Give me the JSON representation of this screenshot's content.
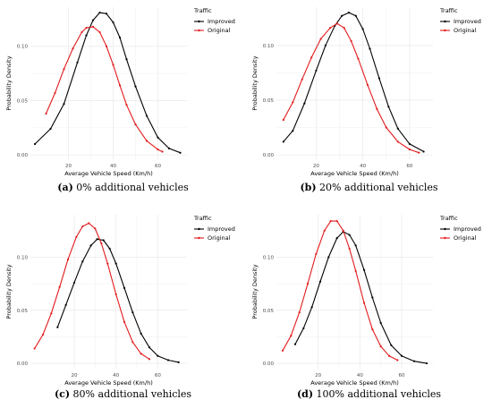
{
  "legend_title": "Traffic",
  "series_names": [
    "Improved",
    "Original"
  ],
  "colors": {
    "Improved": "#000000",
    "Original": "#e31a1c",
    "grid": "#ebebeb",
    "axis_text": "#4d4d4d"
  },
  "xlabel": "Average Vehicle Speed (Km/h)",
  "ylabel": "Probability Density",
  "grid": true,
  "legend_position": "top-right",
  "captions": [
    {
      "letter": "(a)",
      "text": " 0% additional vehicles"
    },
    {
      "letter": "(b)",
      "text": " 20% additional vehicles"
    },
    {
      "letter": "(c)",
      "text": " 80% additional vehicles"
    },
    {
      "letter": "(d)",
      "text": " 100% additional vehicles"
    }
  ],
  "chart_data": [
    {
      "type": "line",
      "xlabel": "Average Vehicle Speed (Km/h)",
      "ylabel": "Probability Density",
      "xlim": [
        3,
        73
      ],
      "ylim": [
        -0.004,
        0.136
      ],
      "xticks": [
        20,
        40,
        60
      ],
      "yticks": [
        0.0,
        0.05,
        0.1
      ],
      "ytick_labels": [
        "0.00",
        "0.05",
        "0.10"
      ],
      "series": [
        {
          "name": "Improved",
          "x": [
            5,
            12,
            18,
            24,
            28,
            31,
            34,
            37,
            40,
            43,
            46,
            50,
            55,
            60,
            65,
            70
          ],
          "y": [
            0.01,
            0.024,
            0.047,
            0.085,
            0.11,
            0.124,
            0.131,
            0.13,
            0.122,
            0.108,
            0.088,
            0.063,
            0.036,
            0.016,
            0.006,
            0.002
          ]
        },
        {
          "name": "Original",
          "x": [
            10,
            14,
            18,
            22,
            26,
            28,
            31,
            34,
            37,
            40,
            43,
            46,
            50,
            55,
            60,
            62
          ],
          "y": [
            0.038,
            0.057,
            0.079,
            0.098,
            0.113,
            0.117,
            0.118,
            0.113,
            0.1,
            0.083,
            0.064,
            0.046,
            0.028,
            0.013,
            0.005,
            0.003
          ]
        }
      ]
    },
    {
      "type": "line",
      "xlabel": "Average Vehicle Speed (Km/h)",
      "ylabel": "Probability Density",
      "xlim": [
        3,
        70
      ],
      "ylim": [
        -0.004,
        0.135
      ],
      "xticks": [
        20,
        40,
        60
      ],
      "yticks": [
        0.0,
        0.05,
        0.1
      ],
      "ytick_labels": [
        "0.00",
        "0.05",
        "0.10"
      ],
      "series": [
        {
          "name": "Improved",
          "x": [
            6,
            10,
            15,
            20,
            24,
            28,
            31,
            34,
            37,
            40,
            43,
            47,
            51,
            55,
            60,
            66
          ],
          "y": [
            0.012,
            0.022,
            0.047,
            0.077,
            0.1,
            0.118,
            0.127,
            0.13,
            0.127,
            0.115,
            0.097,
            0.07,
            0.044,
            0.024,
            0.01,
            0.003
          ]
        },
        {
          "name": "Original",
          "x": [
            6,
            10,
            14,
            18,
            22,
            26,
            29,
            32,
            35,
            38,
            42,
            46,
            50,
            55,
            60,
            64
          ],
          "y": [
            0.032,
            0.048,
            0.069,
            0.089,
            0.106,
            0.116,
            0.12,
            0.116,
            0.104,
            0.088,
            0.064,
            0.042,
            0.025,
            0.012,
            0.005,
            0.002
          ]
        }
      ]
    },
    {
      "type": "line",
      "xlabel": "Average Vehicle Speed (Km/h)",
      "ylabel": "Probability Density",
      "xlim": [
        -1,
        74
      ],
      "ylim": [
        -0.005,
        0.14
      ],
      "xticks": [
        20,
        40,
        60
      ],
      "yticks": [
        0.0,
        0.05,
        0.1
      ],
      "ytick_labels": [
        "0.00",
        "0.05",
        "0.10"
      ],
      "series": [
        {
          "name": "Improved",
          "x": [
            12,
            16,
            20,
            24,
            28,
            31,
            34,
            37,
            40,
            44,
            48,
            52,
            56,
            60,
            65,
            70
          ],
          "y": [
            0.034,
            0.055,
            0.076,
            0.096,
            0.111,
            0.117,
            0.116,
            0.108,
            0.094,
            0.071,
            0.048,
            0.028,
            0.015,
            0.007,
            0.003,
            0.001
          ]
        },
        {
          "name": "Original",
          "x": [
            1,
            5,
            9,
            13,
            17,
            21,
            24,
            27,
            30,
            33,
            36,
            40,
            44,
            48,
            52,
            56
          ],
          "y": [
            0.014,
            0.027,
            0.047,
            0.072,
            0.098,
            0.119,
            0.129,
            0.132,
            0.127,
            0.113,
            0.094,
            0.065,
            0.039,
            0.02,
            0.009,
            0.004
          ]
        }
      ]
    },
    {
      "type": "line",
      "xlabel": "Average Vehicle Speed (Km/h)",
      "ylabel": "Probability Density",
      "xlim": [
        0,
        75
      ],
      "ylim": [
        -0.005,
        0.14
      ],
      "xticks": [
        20,
        40,
        60
      ],
      "yticks": [
        0.0,
        0.05,
        0.1
      ],
      "ytick_labels": [
        "0.00",
        "0.05",
        "0.10"
      ],
      "series": [
        {
          "name": "Improved",
          "x": [
            9,
            13,
            17,
            21,
            25,
            29,
            32,
            35,
            38,
            42,
            46,
            50,
            55,
            60,
            66,
            72
          ],
          "y": [
            0.018,
            0.033,
            0.053,
            0.077,
            0.1,
            0.118,
            0.124,
            0.121,
            0.111,
            0.088,
            0.062,
            0.038,
            0.017,
            0.007,
            0.002,
            0.0
          ]
        },
        {
          "name": "Original",
          "x": [
            3,
            7,
            11,
            15,
            19,
            23,
            26,
            29,
            32,
            35,
            38,
            42,
            46,
            50,
            54,
            58
          ],
          "y": [
            0.012,
            0.026,
            0.048,
            0.075,
            0.103,
            0.125,
            0.134,
            0.134,
            0.125,
            0.108,
            0.087,
            0.057,
            0.032,
            0.016,
            0.007,
            0.003
          ]
        }
      ]
    }
  ]
}
